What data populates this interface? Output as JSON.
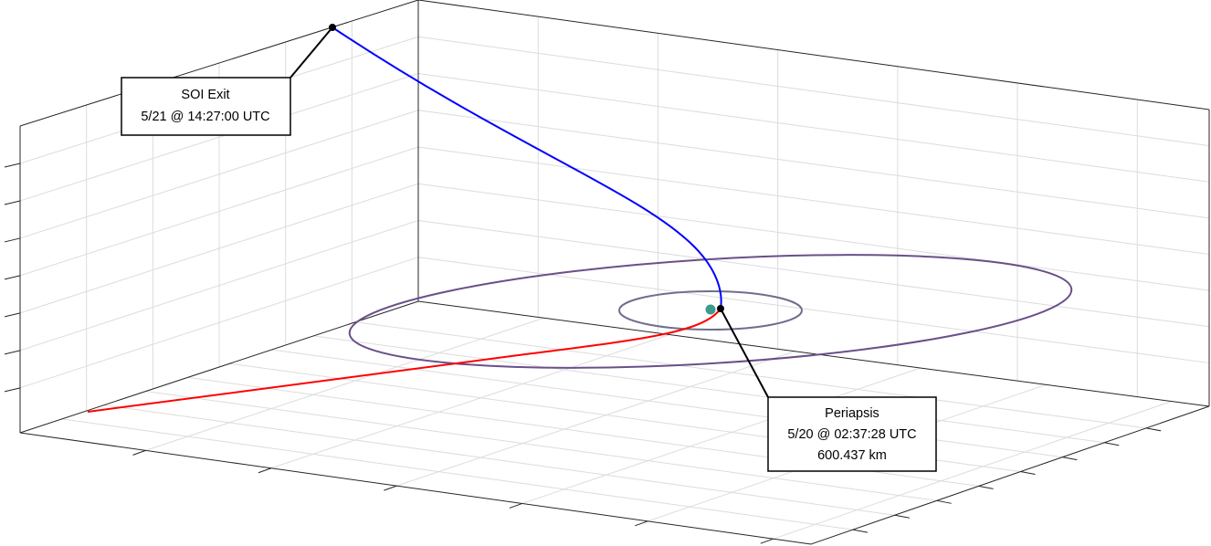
{
  "annotations": [
    {
      "lines": [
        "SOI Exit",
        "5/21 @ 14:27:00 UTC"
      ]
    },
    {
      "lines": [
        "Periapsis",
        "5/20 @ 02:37:28 UTC",
        "600.437 km"
      ]
    }
  ]
}
